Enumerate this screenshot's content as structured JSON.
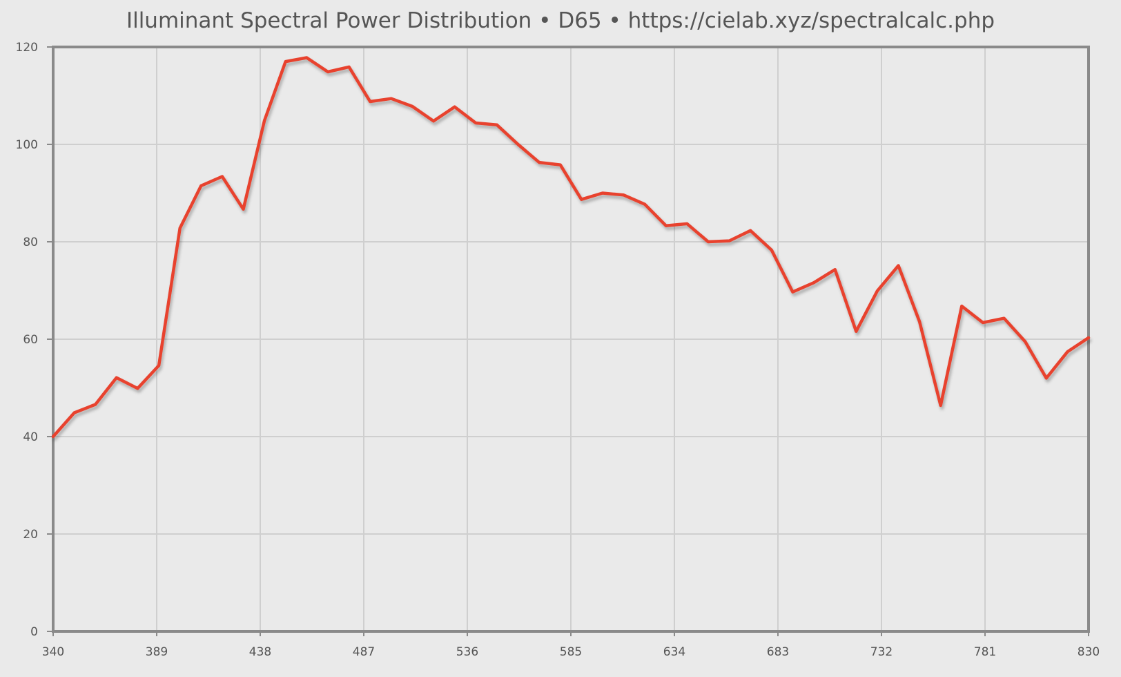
{
  "chart_data": {
    "type": "line",
    "title": "Illuminant Spectral Power Distribution  •  D65  •  https://cielab.xyz/spectralcalc.php",
    "xlabel": "",
    "ylabel": "",
    "xlim": [
      340,
      830
    ],
    "ylim": [
      0,
      120
    ],
    "x_ticks": [
      "340",
      "389",
      "438",
      "487",
      "536",
      "585",
      "634",
      "683",
      "732",
      "781",
      "830"
    ],
    "y_ticks": [
      "0",
      "20",
      "40",
      "60",
      "80",
      "100",
      "120"
    ],
    "grid": true,
    "legend": "none",
    "line_color": "#e8432f",
    "x": [
      340,
      350,
      360,
      370,
      380,
      390,
      400,
      410,
      420,
      430,
      440,
      450,
      460,
      470,
      480,
      490,
      500,
      510,
      520,
      530,
      540,
      550,
      560,
      570,
      580,
      590,
      600,
      610,
      620,
      630,
      640,
      650,
      660,
      670,
      680,
      690,
      700,
      710,
      720,
      730,
      740,
      750,
      760,
      770,
      780,
      790,
      800,
      810,
      820,
      830
    ],
    "series": [
      {
        "values": [
          40.0,
          44.9,
          46.6,
          52.1,
          49.9,
          54.6,
          82.8,
          91.5,
          93.4,
          86.7,
          104.9,
          117.0,
          117.8,
          114.9,
          115.9,
          108.8,
          109.4,
          107.8,
          104.8,
          107.7,
          104.4,
          104.0,
          100.0,
          96.3,
          95.8,
          88.7,
          90.0,
          89.6,
          87.7,
          83.3,
          83.7,
          80.0,
          80.2,
          82.3,
          78.3,
          69.7,
          71.6,
          74.3,
          61.6,
          69.9,
          75.1,
          63.6,
          46.4,
          66.8,
          63.4,
          64.3,
          59.5,
          52.0,
          57.4,
          60.3
        ]
      }
    ]
  }
}
